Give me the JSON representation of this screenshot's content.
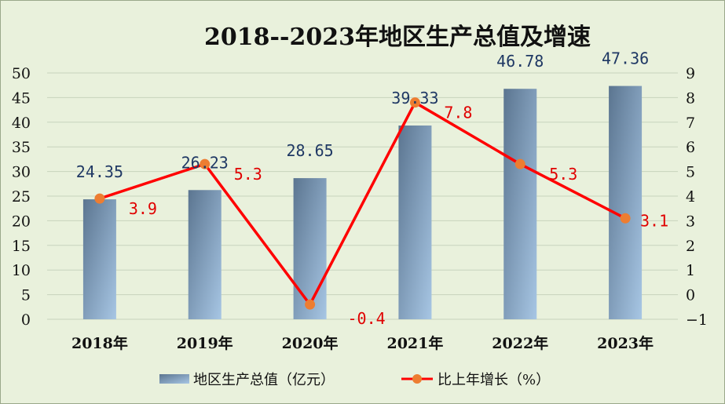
{
  "chart_data": {
    "type": "bar",
    "title": "2018--2023年地区生产总值及增速",
    "categories": [
      "2018年",
      "2019年",
      "2020年",
      "2021年",
      "2022年",
      "2023年"
    ],
    "series": [
      {
        "name": "地区生产总值（亿元）",
        "type": "bar",
        "axis": "left",
        "values": [
          24.35,
          26.23,
          28.65,
          39.33,
          46.78,
          47.36
        ],
        "labels": [
          "24.35",
          "26.23",
          "28.65",
          "39.33",
          "46.78",
          "47.36"
        ]
      },
      {
        "name": "比上年增长（%）",
        "type": "line",
        "axis": "right",
        "values": [
          3.9,
          5.3,
          -0.4,
          7.8,
          5.3,
          3.1
        ],
        "labels": [
          "3.9",
          "5.3",
          "-0.4",
          "7.8",
          "5.3",
          "3.1"
        ]
      }
    ],
    "y_left": {
      "ylim": [
        0,
        50
      ],
      "ticks": [
        0,
        5,
        10,
        15,
        20,
        25,
        30,
        35,
        40,
        45,
        50
      ]
    },
    "y_right": {
      "ylim": [
        -1,
        9
      ],
      "ticks": [
        -1,
        0,
        1,
        2,
        3,
        4,
        5,
        6,
        7,
        8,
        9
      ]
    },
    "grid": true,
    "legend": "bottom",
    "colors": {
      "bar_dark": "#5b7590",
      "bar_light": "#a7c6e4",
      "line": "#ff0000",
      "marker": "#ed7d31",
      "bar_label": "#1f3864",
      "line_label": "#e00000",
      "background": "#e9f1dc",
      "grid": "#c8d3bd"
    }
  }
}
